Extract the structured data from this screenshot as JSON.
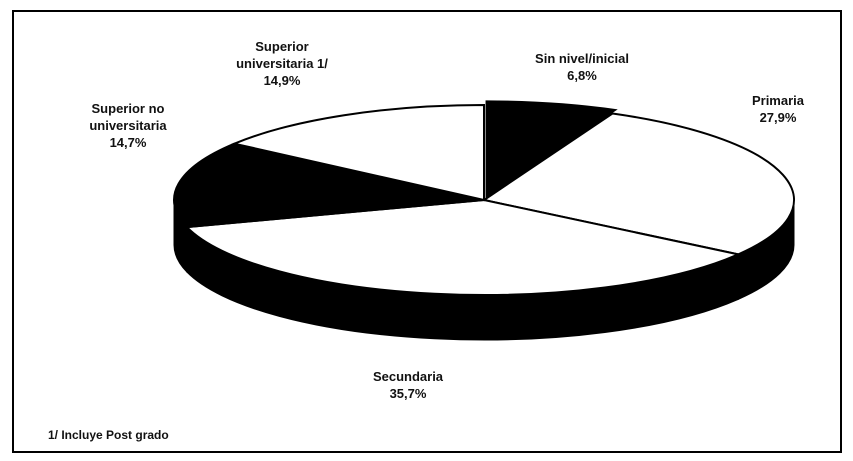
{
  "chart_data": {
    "type": "pie",
    "categories": [
      "Sin nivel/inicial",
      "Primaria",
      "Secundaria",
      "Superior no universitaria",
      "Superior universitaria 1/"
    ],
    "values": [
      6.8,
      27.9,
      35.7,
      14.7,
      14.9
    ],
    "value_labels": [
      "6,8%",
      "27,9%",
      "35,7%",
      "14,7%",
      "14,9%"
    ],
    "colors": [
      "#000000",
      "#ffffff",
      "#ffffff",
      "#000000",
      "#ffffff"
    ],
    "footnote": "1/ Incluye Post grado"
  }
}
